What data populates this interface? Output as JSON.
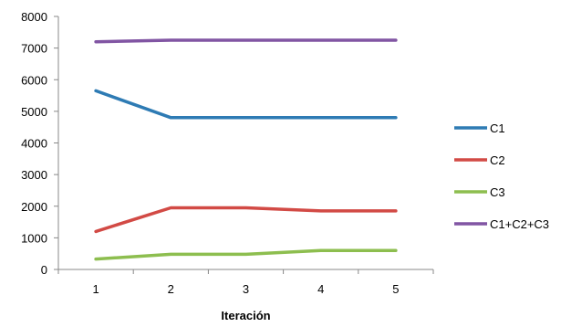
{
  "chart_data": {
    "type": "line",
    "title": "",
    "xlabel": "Iteración",
    "ylabel": "",
    "x": [
      1,
      2,
      3,
      4,
      5
    ],
    "ylim": [
      0,
      8000
    ],
    "yticks": [
      0,
      1000,
      2000,
      3000,
      4000,
      5000,
      6000,
      7000,
      8000
    ],
    "grid": false,
    "legend_position": "right",
    "series": [
      {
        "name": "C1",
        "color": "#2E7BB4",
        "values": [
          5650,
          4800,
          4800,
          4800,
          4800
        ]
      },
      {
        "name": "C2",
        "color": "#D24A45",
        "values": [
          1200,
          1950,
          1950,
          1850,
          1850
        ]
      },
      {
        "name": "C3",
        "color": "#8DBE4F",
        "values": [
          330,
          480,
          480,
          600,
          600
        ]
      },
      {
        "name": "C1+C2+C3",
        "color": "#8155A3",
        "values": [
          7200,
          7250,
          7250,
          7250,
          7250
        ]
      }
    ]
  }
}
